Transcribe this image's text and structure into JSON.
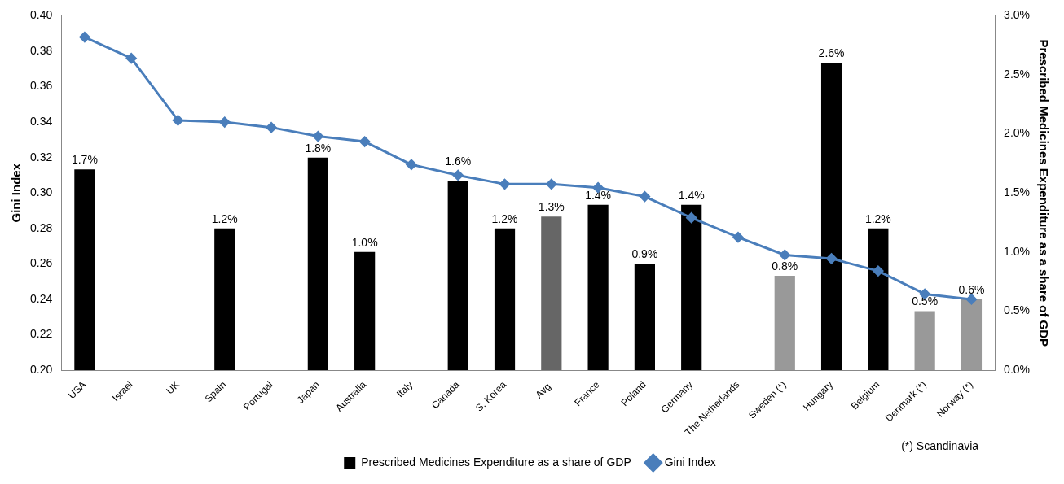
{
  "chart_data": {
    "type": "bar",
    "categories": [
      "USA",
      "Israel",
      "UK",
      "Spain",
      "Portugal",
      "Japan",
      "Australia",
      "Italy",
      "Canada",
      "S. Korea",
      "Avg.",
      "France",
      "Poland",
      "Germany",
      "The Netherlands",
      "Sweden (*)",
      "Hungary",
      "Belgium",
      "Denmark (*)",
      "Norway (*)"
    ],
    "ylabel": "Gini Index",
    "y2label": "Prescribed Medicines Expenditure as a share of GDP",
    "ylim": [
      0.2,
      0.4
    ],
    "yticks": [
      {
        "value": 0.2,
        "label": "0.20"
      },
      {
        "value": 0.22,
        "label": "0.22"
      },
      {
        "value": 0.24,
        "label": "0.24"
      },
      {
        "value": 0.26,
        "label": "0.26"
      },
      {
        "value": 0.28,
        "label": "0.28"
      },
      {
        "value": 0.3,
        "label": "0.30"
      },
      {
        "value": 0.32,
        "label": "0.32"
      },
      {
        "value": 0.34,
        "label": "0.34"
      },
      {
        "value": 0.36,
        "label": "0.36"
      },
      {
        "value": 0.38,
        "label": "0.38"
      },
      {
        "value": 0.4,
        "label": "0.40"
      }
    ],
    "y2lim": [
      0,
      3
    ],
    "y2ticks": [
      {
        "value": 0,
        "label": "0.0%"
      },
      {
        "value": 0.5,
        "label": "0.5%"
      },
      {
        "value": 1,
        "label": "1.0%"
      },
      {
        "value": 1.5,
        "label": "1.5%"
      },
      {
        "value": 2,
        "label": "2.0%"
      },
      {
        "value": 2.5,
        "label": "2.5%"
      },
      {
        "value": 3,
        "label": "3.0%"
      }
    ],
    "series": [
      {
        "name": "Prescribed Medicines Expenditure as a share of GDP",
        "axis": "y2",
        "color": "#000000",
        "colors": [
          "#000000",
          "#000000",
          "#000000",
          "#000000",
          "#000000",
          "#000000",
          "#000000",
          "#000000",
          "#000000",
          "#000000",
          "#666666",
          "#000000",
          "#000000",
          "#000000",
          "#000000",
          "#999999",
          "#000000",
          "#000000",
          "#999999",
          "#999999"
        ],
        "values": [
          1.7,
          null,
          null,
          1.2,
          null,
          1.8,
          1.0,
          null,
          1.6,
          1.2,
          1.3,
          1.4,
          0.9,
          1.4,
          null,
          0.8,
          2.6,
          1.2,
          0.5,
          0.6
        ],
        "value_labels": [
          "1.7%",
          null,
          null,
          "1.2%",
          null,
          "1.8%",
          "1.0%",
          null,
          "1.6%",
          "1.2%",
          "1.3%",
          "1.4%",
          "0.9%",
          "1.4%",
          null,
          "0.8%",
          "2.6%",
          "1.2%",
          "0.5%",
          "0.6%"
        ]
      },
      {
        "name": "Gini Index",
        "type": "line",
        "axis": "y",
        "color": "#4a7ebb",
        "values": [
          0.388,
          0.376,
          0.341,
          0.34,
          0.337,
          0.332,
          0.329,
          0.316,
          0.31,
          0.305,
          0.305,
          0.303,
          0.298,
          0.286,
          0.275,
          0.265,
          0.263,
          0.256,
          0.243,
          0.24
        ]
      }
    ],
    "marker": "diamond",
    "legend": "bottom",
    "grid": false,
    "annotations": [
      "(*) Scandinavia"
    ]
  }
}
